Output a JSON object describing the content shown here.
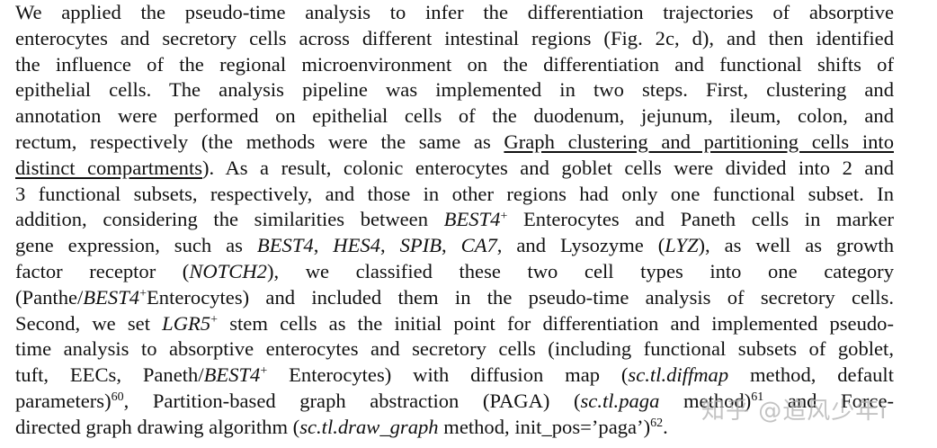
{
  "lines": [
    "We applied the pseudo-time analysis to infer the differentiation trajectories of absorptive",
    "enterocytes and secretory cells across different intestinal regions (Fig. 2c, d), and then identified",
    "the influence of the regional microenvironment on the differentiation and functional shifts of",
    "epithelial cells. The analysis pipeline was implemented in two steps. First, clustering and",
    "annotation were performed on epithelial cells of the duodenum, jejunum, ileum, colon, and"
  ],
  "l6": {
    "a": "rectum, respectively (the methods were the same as ",
    "link": "Graph clustering and partitioning cells into"
  },
  "l7": {
    "link": "distinct compartments",
    "b": "). As a result, colonic enterocytes and goblet cells were divided into 2 and"
  },
  "l8": "3 functional subsets, respectively, and those in other regions had only one functional subset. In",
  "l9": {
    "a": "addition, considering the similarities between ",
    "i1": "BEST4",
    "s1": "+",
    "b": " Enterocytes and Paneth cells in marker"
  },
  "l10": {
    "a": "gene expression, such as ",
    "i1": "BEST4",
    "c1": ", ",
    "i2": "HES4",
    "c2": ", ",
    "i3": "SPIB",
    "c3": ", ",
    "i4": "CA7",
    "c4": ", and Lysozyme (",
    "i5": "LYZ",
    "c5": "), as well as growth"
  },
  "l11": {
    "a": "factor receptor (",
    "i1": "NOTCH2",
    "b": "), we classified these two cell types into one category"
  },
  "l12": {
    "a": "(Panthe/",
    "i1": "BEST4",
    "s1": "+",
    "b": "Enterocytes) and included them in the pseudo-time analysis of secretory cells."
  },
  "l13": {
    "a": "Second, we set ",
    "i1": "LGR5",
    "s1": "+",
    "b": " stem cells as the initial point for differentiation and implemented pseudo-"
  },
  "l14": "time analysis to absorptive enterocytes and secretory cells (including functional subsets of goblet,",
  "l15": {
    "a": "tuft, EECs, Paneth/",
    "i1": "BEST4",
    "s1": "+",
    "b": " Enterocytes) with diffusion map (",
    "i2": "sc.tl.diffmap",
    "c": " method, default"
  },
  "l16": {
    "a": "parameters)",
    "s1": "60",
    "b": ", Partition-based graph abstraction (PAGA) (",
    "i1": "sc.tl.paga",
    "c": " method)",
    "s2": "61",
    "d": " and Force-"
  },
  "l17": {
    "a": "directed graph drawing algorithm (",
    "i1": "sc.tl.draw_graph",
    "b": " method, init_pos=’paga’)",
    "s1": "62",
    "c": "."
  },
  "watermark": "知乎 @追风少年i"
}
